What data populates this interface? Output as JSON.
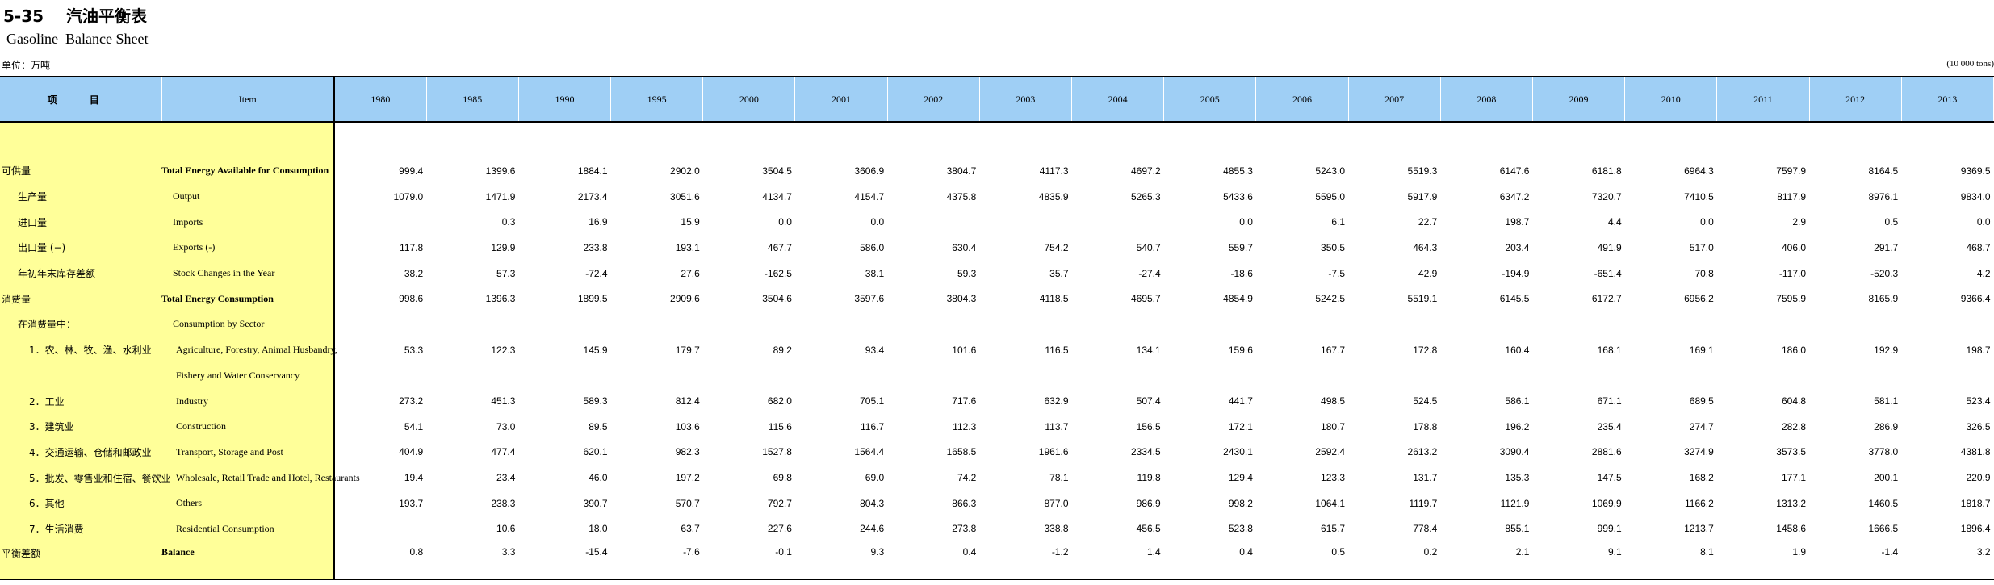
{
  "title": {
    "number": "5-35",
    "cn": "汽油平衡表",
    "en": "Gasoline  Balance Sheet"
  },
  "unit": {
    "left": "单位：万吨",
    "right": "(10 000 tons)"
  },
  "header": {
    "cn": "项 目",
    "en": "Item",
    "years": [
      "1980",
      "1985",
      "1990",
      "1995",
      "2000",
      "2001",
      "2002",
      "2003",
      "2004",
      "2005",
      "2006",
      "2007",
      "2008",
      "2009",
      "2010",
      "2011",
      "2012",
      "2013"
    ]
  },
  "rows": [
    {
      "cn": "可供量",
      "en": "Total Energy Available for Consumption",
      "bold": true,
      "level": 0,
      "values": [
        "999.4",
        "1399.6",
        "1884.1",
        "2902.0",
        "3504.5",
        "3606.9",
        "3804.7",
        "4117.3",
        "4697.2",
        "4855.3",
        "5243.0",
        "5519.3",
        "6147.6",
        "6181.8",
        "6964.3",
        "7597.9",
        "8164.5",
        "9369.5"
      ]
    },
    {
      "cn": "生产量",
      "en": "Output",
      "bold": false,
      "level": 1,
      "values": [
        "1079.0",
        "1471.9",
        "2173.4",
        "3051.6",
        "4134.7",
        "4154.7",
        "4375.8",
        "4835.9",
        "5265.3",
        "5433.6",
        "5595.0",
        "5917.9",
        "6347.2",
        "7320.7",
        "7410.5",
        "8117.9",
        "8976.1",
        "9834.0"
      ]
    },
    {
      "cn": "进口量",
      "en": "Imports",
      "bold": false,
      "level": 1,
      "values": [
        "",
        "0.3",
        "16.9",
        "15.9",
        "0.0",
        "0.0",
        "",
        "",
        "",
        "0.0",
        "6.1",
        "22.7",
        "198.7",
        "4.4",
        "0.0",
        "2.9",
        "0.5",
        "0.0"
      ]
    },
    {
      "cn": "出口量 (−)",
      "en": "Exports (-)",
      "bold": false,
      "level": 1,
      "values": [
        "117.8",
        "129.9",
        "233.8",
        "193.1",
        "467.7",
        "586.0",
        "630.4",
        "754.2",
        "540.7",
        "559.7",
        "350.5",
        "464.3",
        "203.4",
        "491.9",
        "517.0",
        "406.0",
        "291.7",
        "468.7"
      ]
    },
    {
      "cn": "年初年末库存差额",
      "en": "Stock Changes in the Year",
      "bold": false,
      "level": 1,
      "values": [
        "38.2",
        "57.3",
        "-72.4",
        "27.6",
        "-162.5",
        "38.1",
        "59.3",
        "35.7",
        "-27.4",
        "-18.6",
        "-7.5",
        "42.9",
        "-194.9",
        "-651.4",
        "70.8",
        "-117.0",
        "-520.3",
        "4.2"
      ]
    },
    {
      "cn": "消费量",
      "en": "Total Energy Consumption",
      "bold": true,
      "level": 0,
      "values": [
        "998.6",
        "1396.3",
        "1899.5",
        "2909.6",
        "3504.6",
        "3597.6",
        "3804.3",
        "4118.5",
        "4695.7",
        "4854.9",
        "5242.5",
        "5519.1",
        "6145.5",
        "6172.7",
        "6956.2",
        "7595.9",
        "8165.9",
        "9366.4"
      ]
    },
    {
      "cn": "在消费量中：",
      "en": "Consumption by Sector",
      "bold": false,
      "level": 1,
      "values": [
        "",
        "",
        "",
        "",
        "",
        "",
        "",
        "",
        "",
        "",
        "",
        "",
        "",
        "",
        "",
        "",
        "",
        ""
      ]
    },
    {
      "cn": "1．农、林、牧、渔、水利业",
      "en": "Agriculture, Forestry, Animal Husbandry,",
      "bold": false,
      "level": 2,
      "values": [
        "53.3",
        "122.3",
        "145.9",
        "179.7",
        "89.2",
        "93.4",
        "101.6",
        "116.5",
        "134.1",
        "159.6",
        "167.7",
        "172.8",
        "160.4",
        "168.1",
        "169.1",
        "186.0",
        "192.9",
        "198.7"
      ]
    },
    {
      "cn": "",
      "en": "Fishery and Water Conservancy",
      "bold": false,
      "level": 2,
      "values": [
        "",
        "",
        "",
        "",
        "",
        "",
        "",
        "",
        "",
        "",
        "",
        "",
        "",
        "",
        "",
        "",
        "",
        ""
      ]
    },
    {
      "cn": "2．工业",
      "en": "Industry",
      "bold": false,
      "level": 2,
      "values": [
        "273.2",
        "451.3",
        "589.3",
        "812.4",
        "682.0",
        "705.1",
        "717.6",
        "632.9",
        "507.4",
        "441.7",
        "498.5",
        "524.5",
        "586.1",
        "671.1",
        "689.5",
        "604.8",
        "581.1",
        "523.4"
      ]
    },
    {
      "cn": "3．建筑业",
      "en": "Construction",
      "bold": false,
      "level": 2,
      "values": [
        "54.1",
        "73.0",
        "89.5",
        "103.6",
        "115.6",
        "116.7",
        "112.3",
        "113.7",
        "156.5",
        "172.1",
        "180.7",
        "178.8",
        "196.2",
        "235.4",
        "274.7",
        "282.8",
        "286.9",
        "326.5"
      ]
    },
    {
      "cn": "4．交通运输、仓储和邮政业",
      "en": "Transport, Storage and Post",
      "bold": false,
      "level": 2,
      "values": [
        "404.9",
        "477.4",
        "620.1",
        "982.3",
        "1527.8",
        "1564.4",
        "1658.5",
        "1961.6",
        "2334.5",
        "2430.1",
        "2592.4",
        "2613.2",
        "3090.4",
        "2881.6",
        "3274.9",
        "3573.5",
        "3778.0",
        "4381.8"
      ]
    },
    {
      "cn": "5．批发、零售业和住宿、餐饮业",
      "en": "Wholesale, Retail Trade and Hotel, Restaurants",
      "bold": false,
      "level": 2,
      "values": [
        "19.4",
        "23.4",
        "46.0",
        "197.2",
        "69.8",
        "69.0",
        "74.2",
        "78.1",
        "119.8",
        "129.4",
        "123.3",
        "131.7",
        "135.3",
        "147.5",
        "168.2",
        "177.1",
        "200.1",
        "220.9"
      ]
    },
    {
      "cn": "6．其他",
      "en": "Others",
      "bold": false,
      "level": 2,
      "values": [
        "193.7",
        "238.3",
        "390.7",
        "570.7",
        "792.7",
        "804.3",
        "866.3",
        "877.0",
        "986.9",
        "998.2",
        "1064.1",
        "1119.7",
        "1121.9",
        "1069.9",
        "1166.2",
        "1313.2",
        "1460.5",
        "1818.7"
      ]
    },
    {
      "cn": "7．生活消费",
      "en": "Residential Consumption",
      "bold": false,
      "level": 2,
      "values": [
        "",
        "10.6",
        "18.0",
        "63.7",
        "227.6",
        "244.6",
        "273.8",
        "338.8",
        "456.5",
        "523.8",
        "615.7",
        "778.4",
        "855.1",
        "999.1",
        "1213.7",
        "1458.6",
        "1666.5",
        "1896.4"
      ]
    },
    {
      "cn": "平衡差额",
      "en": "Balance",
      "bold": true,
      "level": 0,
      "values": [
        "0.8",
        "3.3",
        "-15.4",
        "-7.6",
        "-0.1",
        "9.3",
        "0.4",
        "-1.2",
        "1.4",
        "0.4",
        "0.5",
        "0.2",
        "2.1",
        "9.1",
        "8.1",
        "1.9",
        "-1.4",
        "3.2"
      ]
    }
  ]
}
